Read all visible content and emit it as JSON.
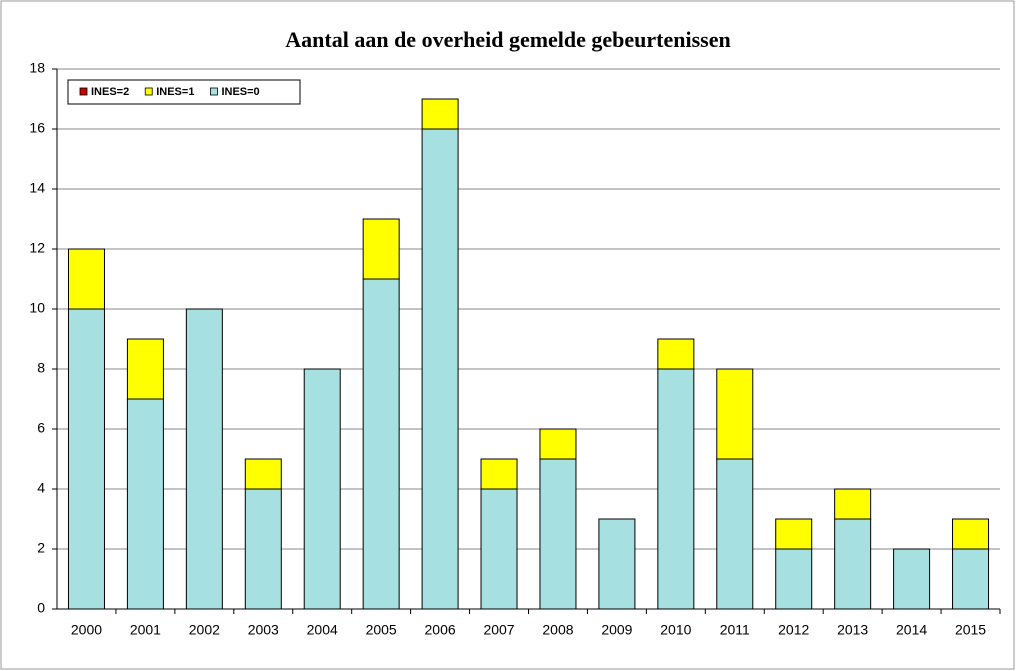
{
  "chart_data": {
    "type": "stacked_bar",
    "title": "Aantal aan de overheid gemelde gebeurtenissen",
    "categories": [
      "2000",
      "2001",
      "2002",
      "2003",
      "2004",
      "2005",
      "2006",
      "2007",
      "2008",
      "2009",
      "2010",
      "2011",
      "2012",
      "2013",
      "2014",
      "2015"
    ],
    "series": [
      {
        "name": "INES=2",
        "color": "#cc0000",
        "values": [
          0,
          0,
          0,
          0,
          0,
          0,
          0,
          0,
          0,
          0,
          0,
          0,
          0,
          0,
          0,
          0
        ]
      },
      {
        "name": "INES=1",
        "color": "#ffff00",
        "values": [
          2,
          2,
          0,
          1,
          0,
          2,
          1,
          1,
          1,
          0,
          1,
          3,
          1,
          1,
          0,
          1
        ]
      },
      {
        "name": "INES=0",
        "color": "#a6e0e0",
        "values": [
          10,
          7,
          10,
          4,
          8,
          11,
          16,
          4,
          5,
          3,
          8,
          5,
          2,
          3,
          2,
          2
        ]
      }
    ],
    "ylim": [
      0,
      18
    ],
    "yticks": [
      0,
      2,
      4,
      6,
      8,
      10,
      12,
      14,
      16,
      18
    ],
    "grid": true,
    "legend": "upper-left"
  }
}
